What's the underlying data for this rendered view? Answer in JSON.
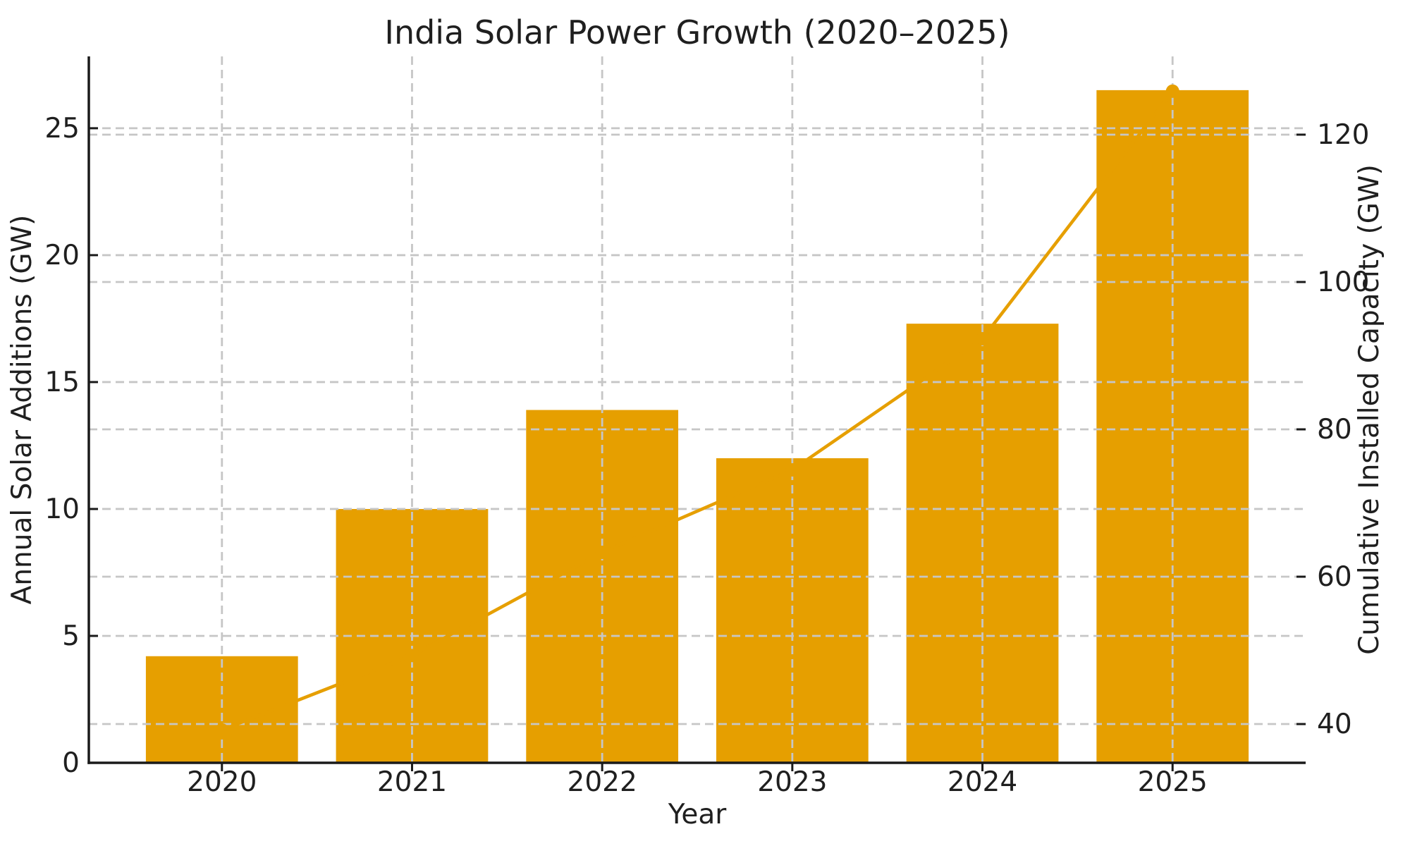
{
  "figure": {
    "title": "India Solar Power Growth (2020–2025)",
    "xlabel": "Year",
    "ylabel_left": "Annual Solar Additions (GW)",
    "ylabel_right": "Cumulative Installed Capacity (GW)"
  },
  "chart_data": {
    "type": "bar+line",
    "title": "India Solar Power Growth (2020–2025)",
    "xlabel": "Year",
    "ylabel_left": "Annual Solar Additions (GW)",
    "ylabel_right": "Cumulative Installed Capacity (GW)",
    "categories": [
      "2020",
      "2021",
      "2022",
      "2023",
      "2024",
      "2025"
    ],
    "series": [
      {
        "name": "Annual Solar Additions (GW)",
        "type": "bar",
        "axis": "left",
        "values": [
          4.2,
          10.0,
          13.9,
          12.0,
          17.3,
          26.5
        ]
      },
      {
        "name": "Cumulative Installed Capacity (GW)",
        "type": "line",
        "axis": "right",
        "marker": "circle",
        "values": [
          39.2,
          49.3,
          63.3,
          74.5,
          92.3,
          125.9
        ]
      }
    ],
    "yticks_left": [
      0,
      5,
      10,
      15,
      20,
      25
    ],
    "yticks_right": [
      40,
      60,
      80,
      100,
      120
    ],
    "ylim_left": [
      0,
      27.83
    ],
    "ylim_right": [
      34.74,
      130.62
    ],
    "xlim": [
      -0.7,
      5.7
    ],
    "bar_width": 0.8,
    "grid": true,
    "legend": false,
    "colors": {
      "bar": "#E69F00",
      "line": "#E69F00",
      "grid": "#C6C6C6",
      "spine": "#1A1A1A",
      "text": "#1F1F1F",
      "background": "#FFFFFF"
    }
  }
}
